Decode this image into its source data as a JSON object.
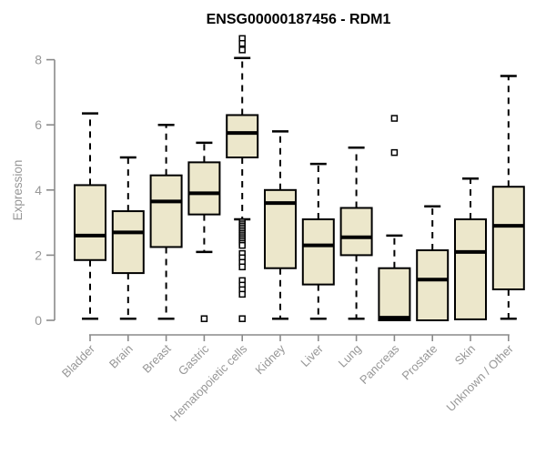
{
  "title": "ENSG00000187456 - RDM1",
  "colors": {
    "box_fill": "#ECE7CB",
    "box_border": "#000000",
    "median": "#000000",
    "whisker": "#000000",
    "outlier_fill": "#ffffff",
    "axis_line": "#8A8A8A",
    "tick_label": "#979797",
    "title_color": "#000000"
  },
  "chart_data": {
    "type": "boxplot",
    "title": "ENSG00000187456 - RDM1",
    "ylabel": "Expression",
    "xlabel": "",
    "ylim": [
      0,
      8.8
    ],
    "y_ticks": [
      0,
      2,
      4,
      6,
      8
    ],
    "grid": false,
    "legend": "none",
    "categories": [
      "Bladder",
      "Brain",
      "Breast",
      "Gastric",
      "Hematopoietic cells",
      "Kidney",
      "Liver",
      "Lung",
      "Pancreas",
      "Prostate",
      "Skin",
      "Unknown / Other"
    ],
    "series": [
      {
        "name": "Bladder",
        "whisker_low": 0.05,
        "q1": 1.85,
        "median": 2.6,
        "q3": 4.15,
        "whisker_high": 6.35,
        "outliers": []
      },
      {
        "name": "Brain",
        "whisker_low": 0.05,
        "q1": 1.45,
        "median": 2.7,
        "q3": 3.35,
        "whisker_high": 5.0,
        "outliers": []
      },
      {
        "name": "Breast",
        "whisker_low": 0.05,
        "q1": 2.25,
        "median": 3.65,
        "q3": 4.45,
        "whisker_high": 6.0,
        "outliers": []
      },
      {
        "name": "Gastric",
        "whisker_low": 2.1,
        "q1": 3.25,
        "median": 3.9,
        "q3": 4.85,
        "whisker_high": 5.45,
        "outliers": [
          0.05
        ]
      },
      {
        "name": "Hematopoietic cells",
        "whisker_low": 3.1,
        "q1": 5.0,
        "median": 5.75,
        "q3": 6.3,
        "whisker_high": 8.05,
        "outliers": [
          8.65,
          8.5,
          8.3,
          3.02,
          2.96,
          2.9,
          2.84,
          2.78,
          2.72,
          2.66,
          2.6,
          2.54,
          2.48,
          2.42,
          2.36,
          2.3,
          2.05,
          1.92,
          1.78,
          1.64,
          1.22,
          1.08,
          0.94,
          0.8,
          0.05
        ]
      },
      {
        "name": "Kidney",
        "whisker_low": 0.05,
        "q1": 1.6,
        "median": 3.6,
        "q3": 4.0,
        "whisker_high": 5.8,
        "outliers": []
      },
      {
        "name": "Liver",
        "whisker_low": 0.05,
        "q1": 1.1,
        "median": 2.3,
        "q3": 3.1,
        "whisker_high": 4.8,
        "outliers": []
      },
      {
        "name": "Lung",
        "whisker_low": 0.05,
        "q1": 2.0,
        "median": 2.55,
        "q3": 3.45,
        "whisker_high": 5.3,
        "outliers": []
      },
      {
        "name": "Pancreas",
        "whisker_low": 0.0,
        "q1": 0.0,
        "median": 0.08,
        "q3": 1.6,
        "whisker_high": 2.6,
        "outliers": [
          6.2,
          5.15
        ]
      },
      {
        "name": "Prostate",
        "whisker_low": 0.0,
        "q1": 0.0,
        "median": 1.25,
        "q3": 2.15,
        "whisker_high": 3.5,
        "outliers": []
      },
      {
        "name": "Skin",
        "whisker_low": 0.03,
        "q1": 0.03,
        "median": 2.1,
        "q3": 3.1,
        "whisker_high": 4.35,
        "outliers": []
      },
      {
        "name": "Unknown / Other",
        "whisker_low": 0.05,
        "q1": 0.95,
        "median": 2.9,
        "q3": 4.1,
        "whisker_high": 7.5,
        "outliers": []
      }
    ]
  }
}
